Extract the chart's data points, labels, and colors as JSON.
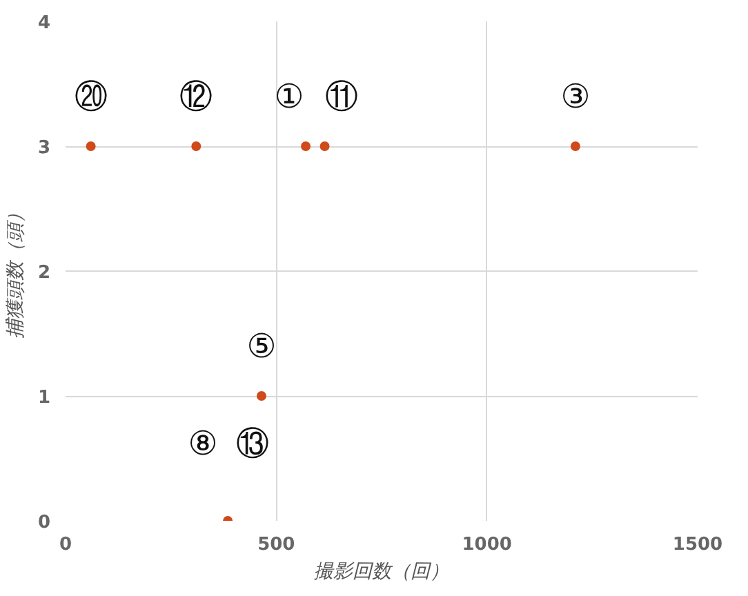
{
  "chart_data": {
    "type": "scatter",
    "xlabel": "撮影回数（回）",
    "ylabel": "捕獲頭数（頭）",
    "x": [
      60,
      310,
      570,
      615,
      1210,
      465,
      385
    ],
    "values": [
      3,
      3,
      3,
      3,
      3,
      1,
      0
    ],
    "color": "#d04a1a",
    "marker": "circle",
    "xlim": [
      0,
      1500
    ],
    "ylim": [
      0,
      4
    ],
    "xticks": [
      0,
      500,
      1000,
      1500
    ],
    "yticks": [
      0,
      1,
      2,
      3,
      4
    ],
    "grid": true,
    "annotations": [
      {
        "text": "⑳",
        "x": 60,
        "y": 3
      },
      {
        "text": "⑫",
        "x": 310,
        "y": 3
      },
      {
        "text": "①",
        "x": 570,
        "y": 3
      },
      {
        "text": "⑪",
        "x": 615,
        "y": 3
      },
      {
        "text": "③",
        "x": 1210,
        "y": 3
      },
      {
        "text": "⑤",
        "x": 465,
        "y": 1
      },
      {
        "text": "⑧",
        "x": 385,
        "y": 0
      },
      {
        "text": "⑬",
        "x": 385,
        "y": 0
      }
    ]
  }
}
